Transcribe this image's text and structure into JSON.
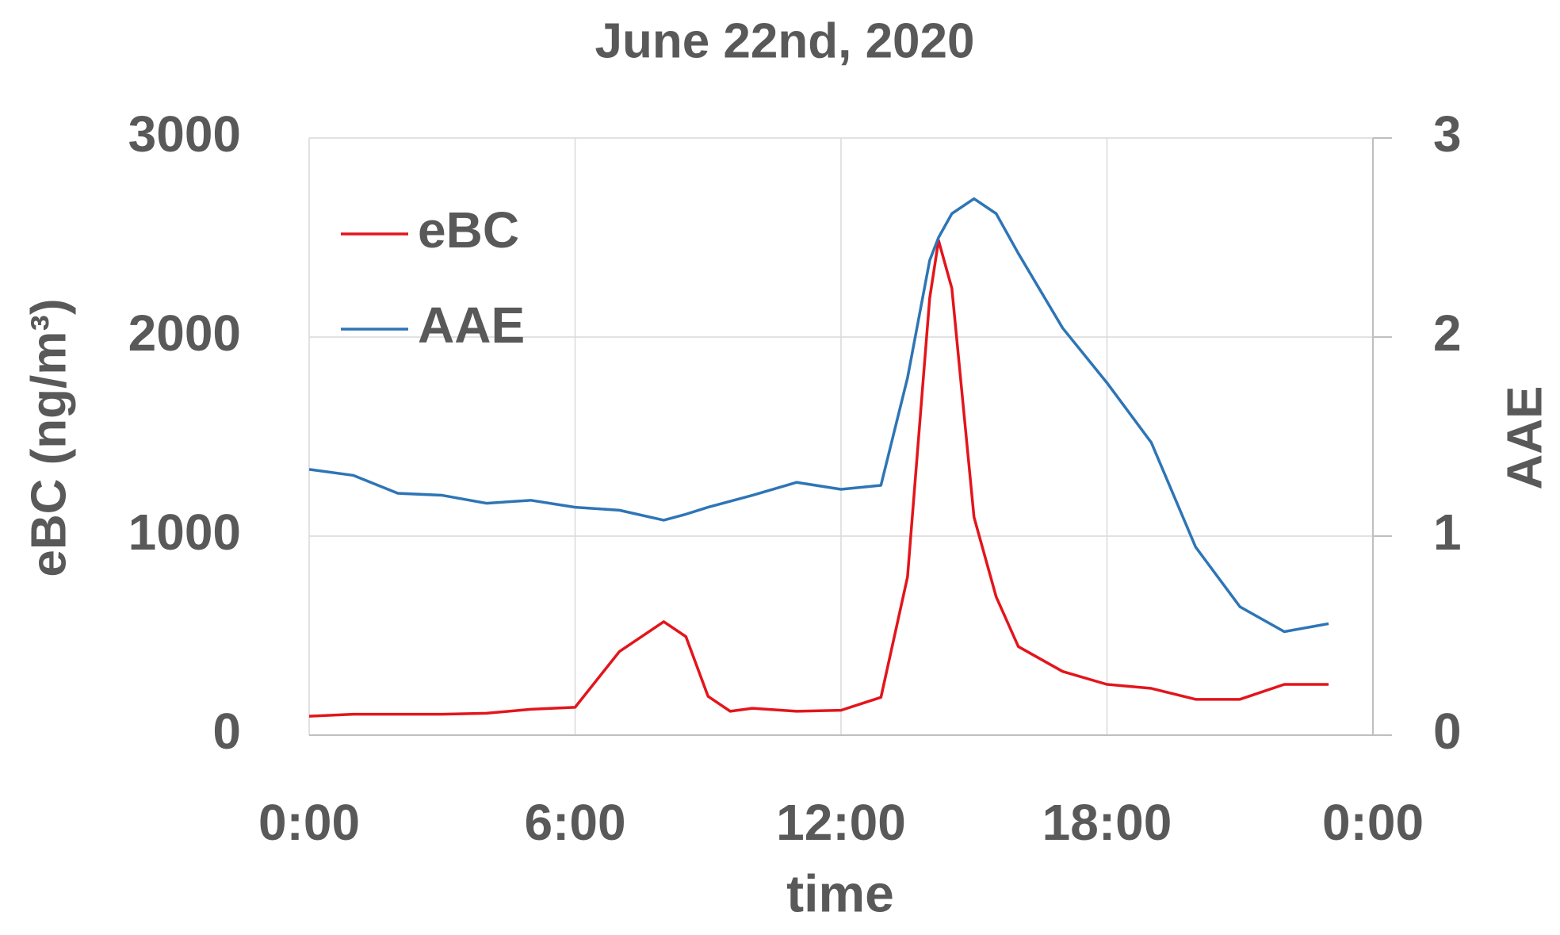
{
  "chart_data": {
    "type": "line",
    "title": "June 22nd, 2020",
    "xlabel": "time",
    "ylabel": "eBC (ng/m³)",
    "y2label": "AAE",
    "x": [
      0,
      1,
      2,
      3,
      4,
      5,
      6,
      7,
      8,
      8.5,
      9,
      9.5,
      10,
      11,
      12,
      12.9,
      13.5,
      14,
      14.2,
      14.5,
      15,
      15.5,
      16,
      17,
      18,
      19,
      20,
      21,
      22,
      23
    ],
    "series": [
      {
        "name": "eBC",
        "color": "#e3151b",
        "values": [
          95,
          105,
          105,
          105,
          110,
          130,
          140,
          420,
          570,
          495,
          195,
          120,
          135,
          120,
          125,
          190,
          795,
          2195,
          2485,
          2245,
          1095,
          695,
          445,
          320,
          255,
          235,
          180,
          180,
          255,
          255
        ]
      },
      {
        "name": "AAE",
        "color": "#2e75b6",
        "axis": "y2",
        "values": [
          1.335,
          1.305,
          1.215,
          1.205,
          1.165,
          1.18,
          1.145,
          1.13,
          1.08,
          1.11,
          1.145,
          1.175,
          1.205,
          1.27,
          1.235,
          1.255,
          1.795,
          2.385,
          2.5,
          2.62,
          2.695,
          2.62,
          2.42,
          2.045,
          1.77,
          1.47,
          0.945,
          0.645,
          0.52,
          0.56
        ]
      }
    ],
    "xlim": [
      0,
      24
    ],
    "xticks": [
      {
        "value": 0,
        "label": "0:00"
      },
      {
        "value": 6,
        "label": "6:00"
      },
      {
        "value": 12,
        "label": "12:00"
      },
      {
        "value": 18,
        "label": "18:00"
      },
      {
        "value": 24,
        "label": "0:00"
      }
    ],
    "ylim": [
      0,
      3000
    ],
    "yticks": [
      0,
      1000,
      2000,
      3000
    ],
    "y2lim": [
      0,
      3
    ],
    "y2ticks": [
      0,
      1,
      2,
      3
    ],
    "grid": true,
    "legend": "upper left"
  }
}
